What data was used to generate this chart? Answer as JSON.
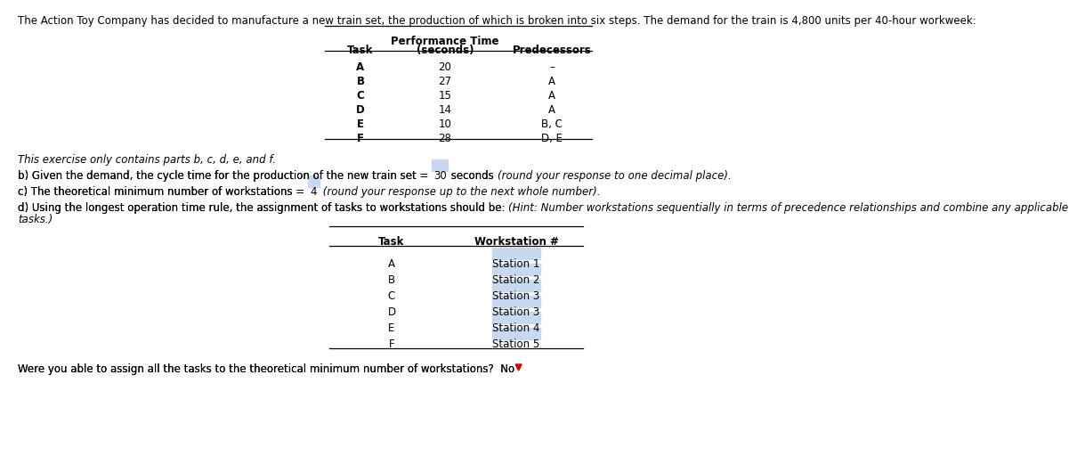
{
  "intro_text": "The Action Toy Company has decided to manufacture a new train set, the production of which is broken into six steps. The demand for the train is 4,800 units per 40-hour workweek:",
  "table1_tasks": [
    "A",
    "B",
    "C",
    "D",
    "E",
    "F"
  ],
  "table1_times": [
    "20",
    "27",
    "15",
    "14",
    "10",
    "28"
  ],
  "table1_preds": [
    "–",
    "A",
    "A",
    "A",
    "B, C",
    "D, E"
  ],
  "italic_text": "This exercise only contains parts b, c, d, e, and f.",
  "part_b_prefix": "b) Given the demand, the cycle time for the production of the new train set = ",
  "part_b_value": "30",
  "part_b_middle": " seconds ",
  "part_b_italic": "(round your response to one decimal place).",
  "part_c_prefix": "c) The theoretical minimum number of workstations = ",
  "part_c_value": "4",
  "part_c_italic": " (round your response up to the next whole number).",
  "part_d_line1a": "d) Using the longest operation time rule, the assignment of tasks to workstations should be: ",
  "part_d_line1b": "(Hint: Number workstations sequentially in terms of precedence relationships and combine any applicable",
  "part_d_line2": "tasks.)",
  "table2_tasks": [
    "A",
    "B",
    "C",
    "D",
    "E",
    "F"
  ],
  "table2_stations": [
    "Station 1",
    "Station 2",
    "Station 3",
    "Station 3",
    "Station 4",
    "Station 5"
  ],
  "table2_highlight": [
    true,
    false,
    true,
    true,
    true,
    true
  ],
  "footer_text": "Were you able to assign all the tasks to the theoretical minimum number of workstations?  No",
  "highlight_color": "#c8d8f0",
  "bg_color": "#ffffff",
  "text_color": "#000000"
}
